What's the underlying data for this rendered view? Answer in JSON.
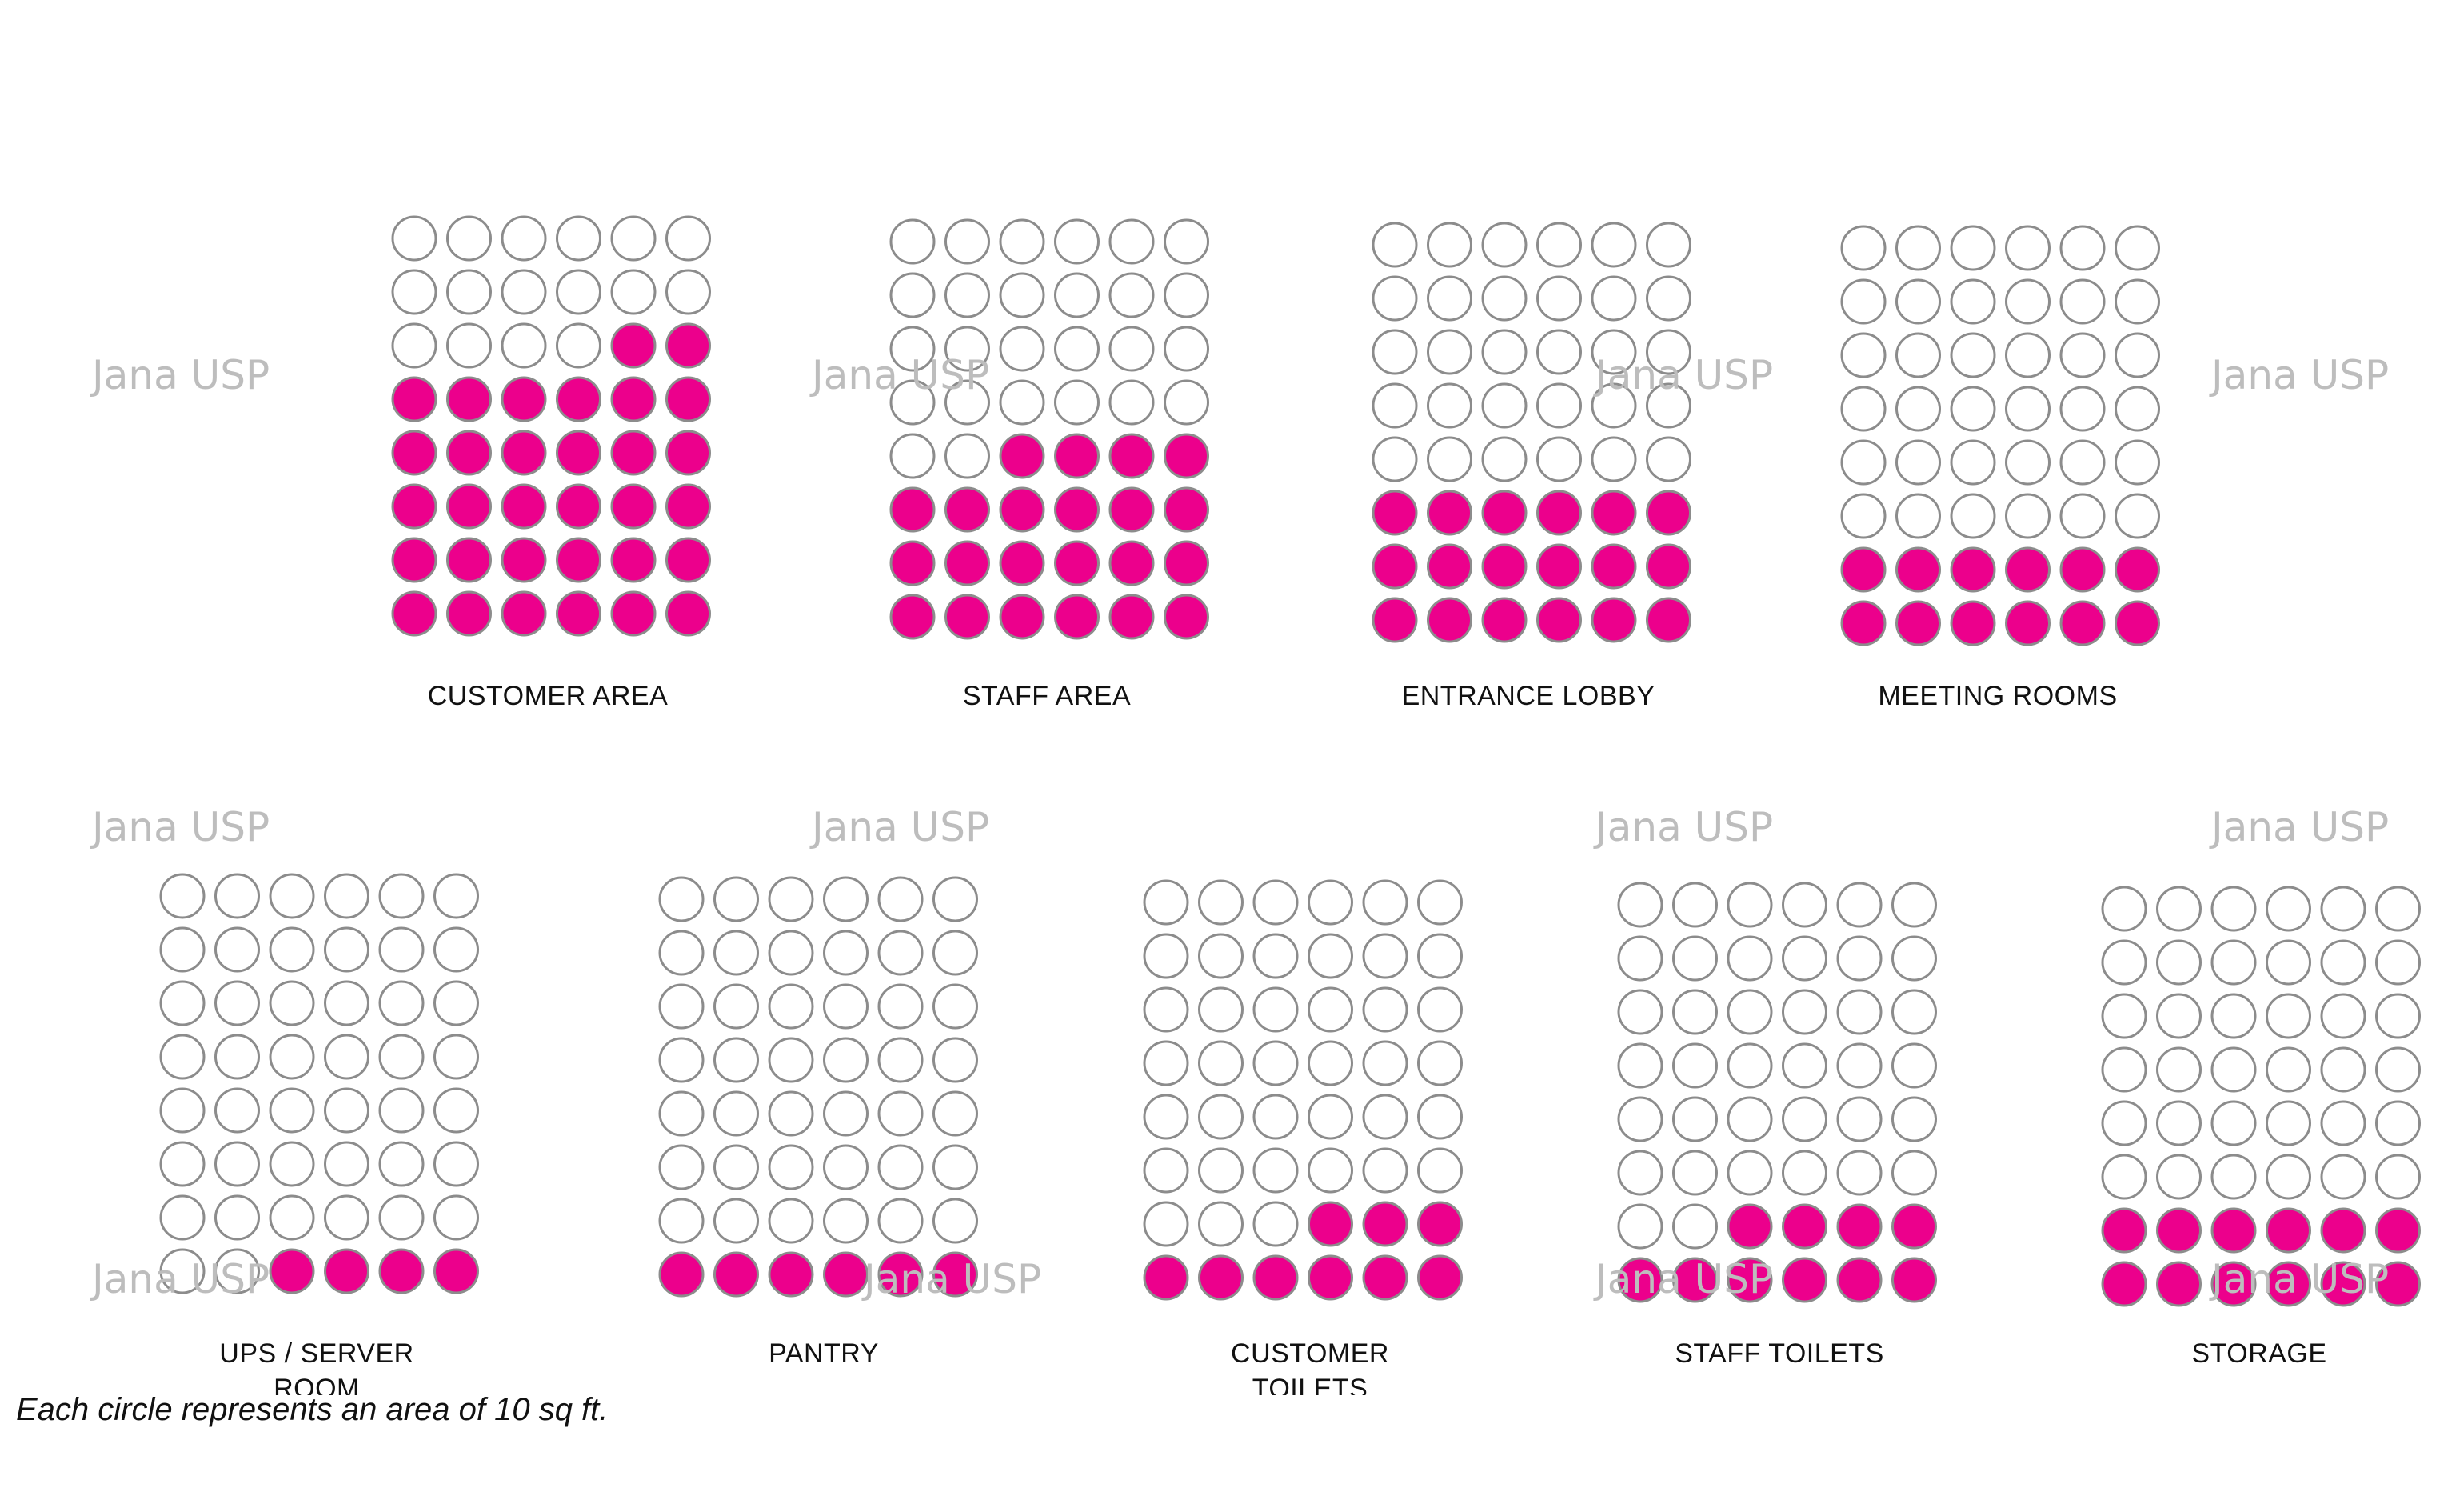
{
  "chart_data": {
    "type": "waffle",
    "columns": 6,
    "unit_note": "Each circle represents an area of 10 sq ft.",
    "fill_color": "#ec008c",
    "empty_color": "#ffffff",
    "outline_color": "#8c8c8c",
    "areas": [
      {
        "label": "CUSTOMER  AREA",
        "label_lines": [
          "CUSTOMER  AREA"
        ],
        "total_circles": 48,
        "filled_circles": 32
      },
      {
        "label": "STAFF AREA",
        "label_lines": [
          "STAFF AREA"
        ],
        "total_circles": 48,
        "filled_circles": 22
      },
      {
        "label": "ENTRANCE LOBBY",
        "label_lines": [
          "ENTRANCE LOBBY"
        ],
        "total_circles": 48,
        "filled_circles": 18
      },
      {
        "label": "MEETING ROOMS",
        "label_lines": [
          "MEETING ROOMS"
        ],
        "total_circles": 48,
        "filled_circles": 12
      },
      {
        "label": "UPS / SERVER ROOM",
        "label_lines": [
          "UPS / SERVER",
          "ROOM"
        ],
        "total_circles": 48,
        "filled_circles": 4
      },
      {
        "label": "PANTRY",
        "label_lines": [
          "PANTRY"
        ],
        "total_circles": 48,
        "filled_circles": 6
      },
      {
        "label": "CUSTOMER TOILETS",
        "label_lines": [
          "CUSTOMER",
          "TOILETS"
        ],
        "total_circles": 48,
        "filled_circles": 9
      },
      {
        "label": "STAFF TOILETS",
        "label_lines": [
          "STAFF TOILETS"
        ],
        "total_circles": 48,
        "filled_circles": 10
      },
      {
        "label": "STORAGE",
        "label_lines": [
          "STORAGE"
        ],
        "total_circles": 48,
        "filled_circles": 12
      }
    ]
  },
  "watermark": "Jana USP"
}
